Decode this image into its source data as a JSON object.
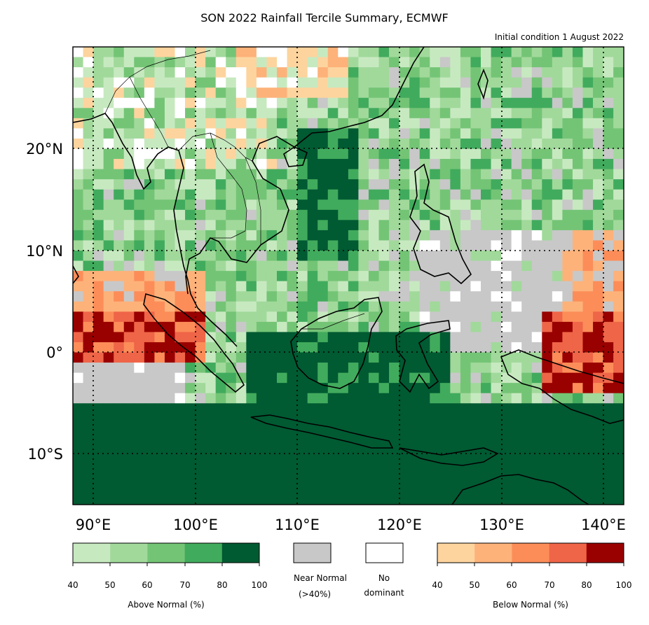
{
  "map": {
    "title": "SON 2022 Rainfall Tercile Summary, ECMWF",
    "subtitle": "Initial condition 1 August 2022",
    "lon_range": [
      88,
      142
    ],
    "lat_range": [
      -15,
      30
    ],
    "lon_ticks": [
      {
        "value": 90,
        "label": "90°E"
      },
      {
        "value": 100,
        "label": "100°E"
      },
      {
        "value": 110,
        "label": "110°E"
      },
      {
        "value": 120,
        "label": "120°E"
      },
      {
        "value": 130,
        "label": "130°E"
      },
      {
        "value": 140,
        "label": "140°E"
      }
    ],
    "lat_ticks": [
      {
        "value": 20,
        "label": "20°N"
      },
      {
        "value": 10,
        "label": "10°N"
      },
      {
        "value": 0,
        "label": "0°"
      },
      {
        "value": -10,
        "label": "10°S"
      }
    ],
    "gridlines": "dotted",
    "land_outline_color": "#000000"
  },
  "legend": {
    "above_normal": {
      "label": "Above Normal (%)",
      "ticks": [
        "40",
        "50",
        "60",
        "70",
        "80",
        "100"
      ],
      "colors": [
        "#c7e9c0",
        "#a1d99b",
        "#74c476",
        "#41ab5d",
        "#005a32"
      ]
    },
    "near_normal": {
      "label_line1": "Near Normal",
      "label_line2": "(>40%)",
      "color": "#c8c8c8"
    },
    "no_dominant": {
      "label_line1": "No",
      "label_line2": "dominant",
      "color": "#ffffff"
    },
    "below_normal": {
      "label": "Below Normal (%)",
      "ticks": [
        "40",
        "50",
        "60",
        "70",
        "80",
        "100"
      ],
      "colors": [
        "#fdd49e",
        "#fdb27a",
        "#fc8d59",
        "#ef6548",
        "#990000"
      ]
    }
  }
}
